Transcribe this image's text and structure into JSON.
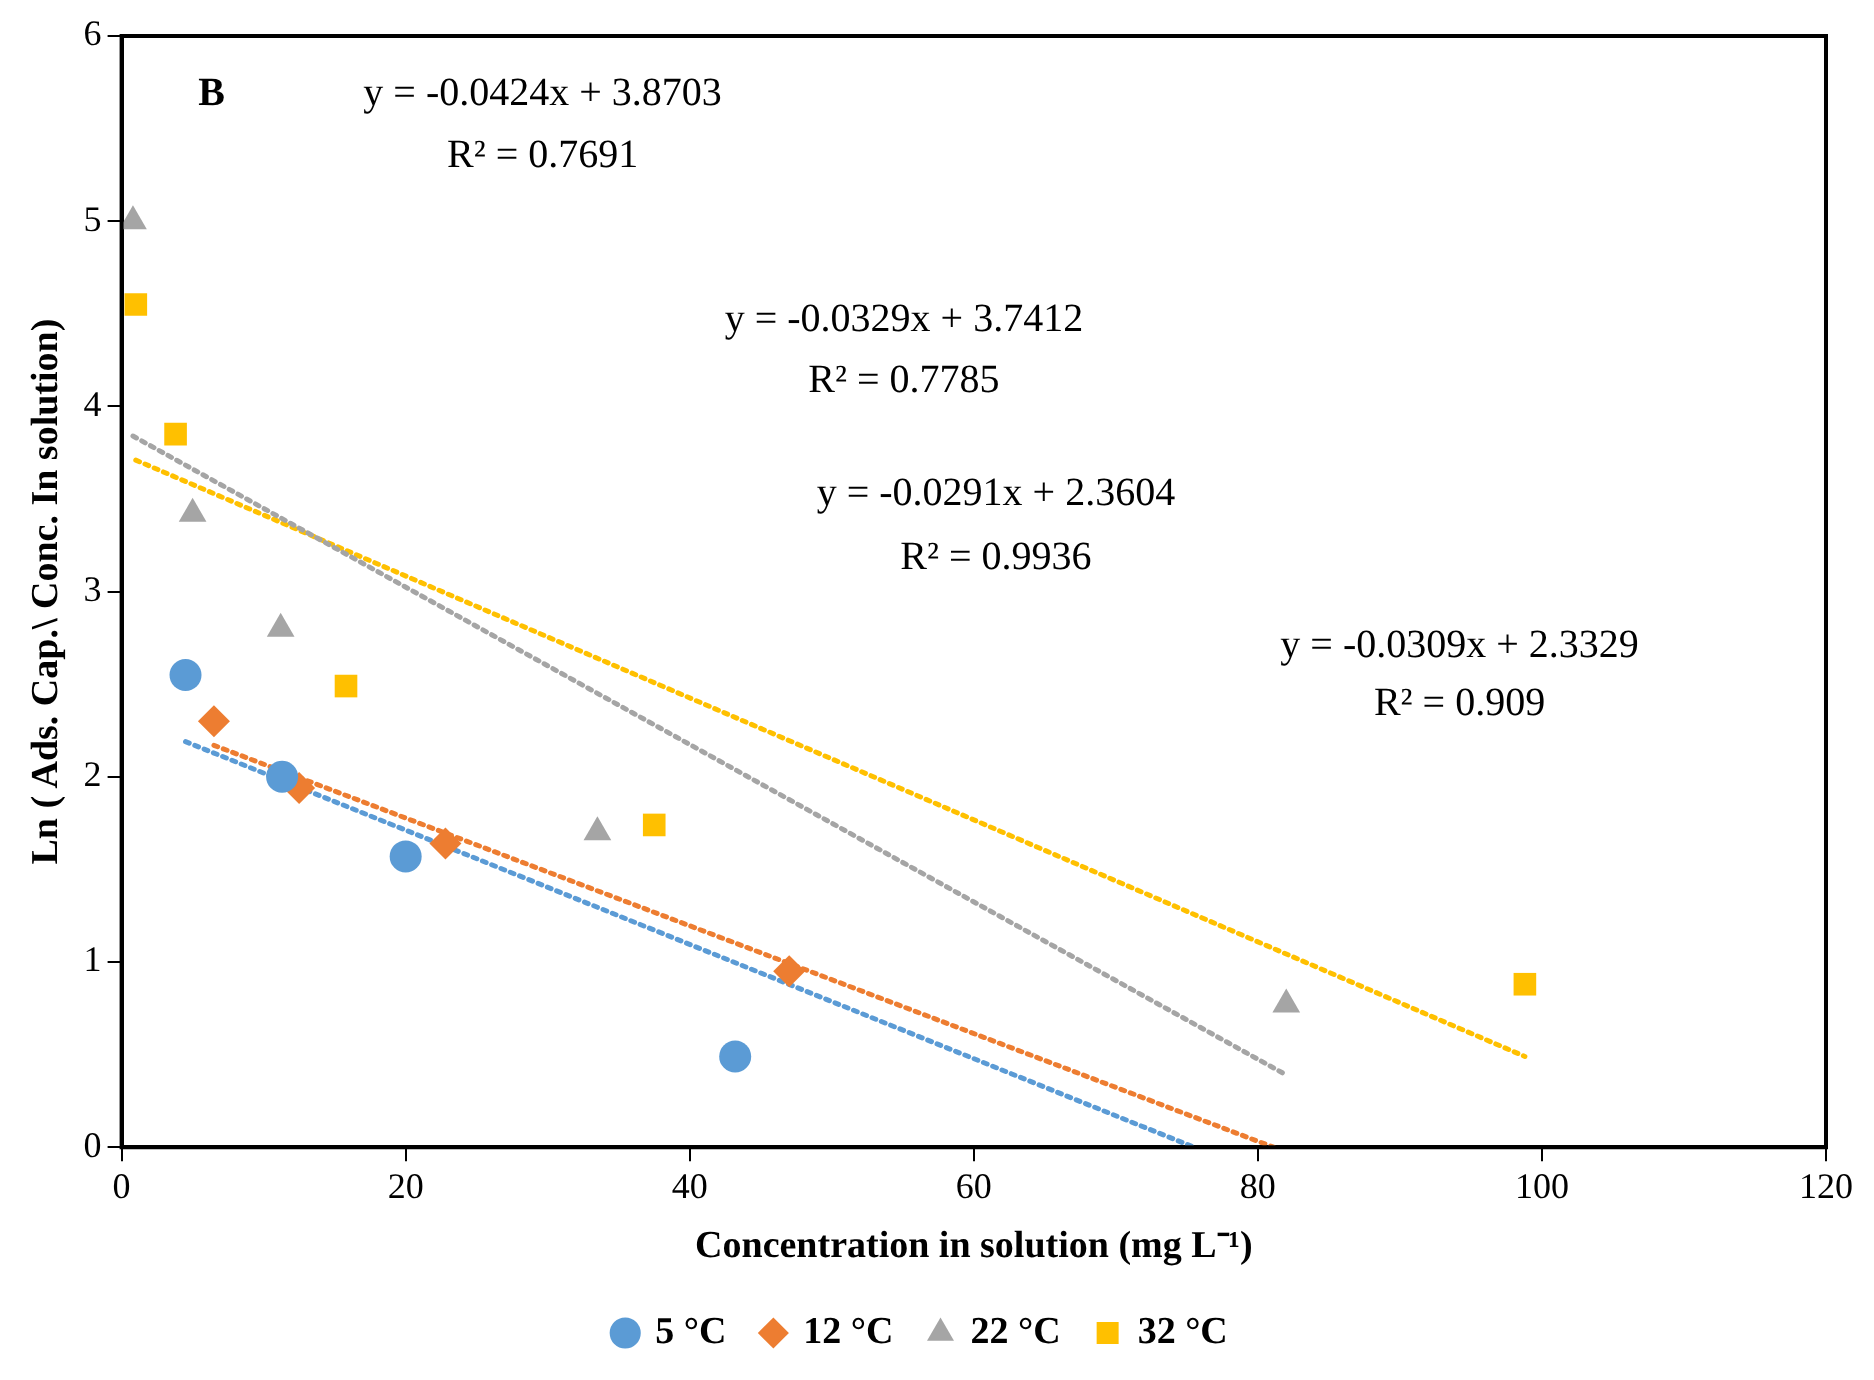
{
  "chart_data": {
    "type": "scatter",
    "xlabel": "Concentration in solution (mg L⁻¹)",
    "ylabel": "Ln ( Ads. Cap.\\ Conc. In solution)",
    "xlim": [
      0,
      120
    ],
    "xticks": [
      0,
      20,
      40,
      60,
      80,
      100,
      120
    ],
    "ylim": [
      0,
      6
    ],
    "yticks": [
      0,
      1,
      2,
      3,
      4,
      5,
      6
    ],
    "grid": false,
    "legend": "bottom",
    "annotations": [
      "B",
      "y = -0.0424x + 3.8703",
      "R² = 0.7691",
      "y = -0.0329x + 3.7412",
      "R² = 0.7785",
      "y = -0.0291x + 2.3604",
      "R² = 0.9936",
      "y = -0.0309x + 2.3329",
      "R² = 0.909"
    ],
    "series": [
      {
        "name": "5 °C",
        "marker": "circle",
        "color": "#5b9bd5",
        "x": [
          4.5,
          11.3,
          20,
          43.2
        ],
        "values": [
          2.55,
          2.0,
          1.57,
          0.49
        ]
      },
      {
        "name": "12 °C",
        "marker": "diamond",
        "color": "#ed7d31",
        "x": [
          6.5,
          12.5,
          22.8,
          47
        ],
        "values": [
          2.3,
          1.94,
          1.64,
          0.95
        ]
      },
      {
        "name": "22 °C",
        "marker": "triangle",
        "color": "#a5a5a5",
        "x": [
          0.8,
          5,
          11.2,
          33.5,
          82
        ],
        "values": [
          5.0,
          3.42,
          2.8,
          1.7,
          0.77
        ]
      },
      {
        "name": "32 °C",
        "marker": "square",
        "color": "#ffc000",
        "x": [
          1,
          3.8,
          15.8,
          37.5,
          98.8
        ],
        "values": [
          4.55,
          3.85,
          2.49,
          1.74,
          0.88
        ]
      },
      {
        "type": "line",
        "marker": "none",
        "line_style": "dotted",
        "color": "#5b9bd5",
        "x": [
          4.5,
          75.5
        ],
        "values": [
          2.19,
          0
        ]
      },
      {
        "type": "line",
        "marker": "none",
        "line_style": "dotted",
        "color": "#ed7d31",
        "x": [
          6.5,
          81.1
        ],
        "values": [
          2.17,
          0
        ]
      },
      {
        "type": "line",
        "marker": "none",
        "line_style": "dotted",
        "color": "#a5a5a5",
        "x": [
          0.8,
          82
        ],
        "values": [
          3.84,
          0.39
        ]
      },
      {
        "type": "line",
        "marker": "none",
        "line_style": "dotted",
        "color": "#ffc000",
        "x": [
          1,
          98.8
        ],
        "values": [
          3.71,
          0.49
        ]
      }
    ]
  }
}
